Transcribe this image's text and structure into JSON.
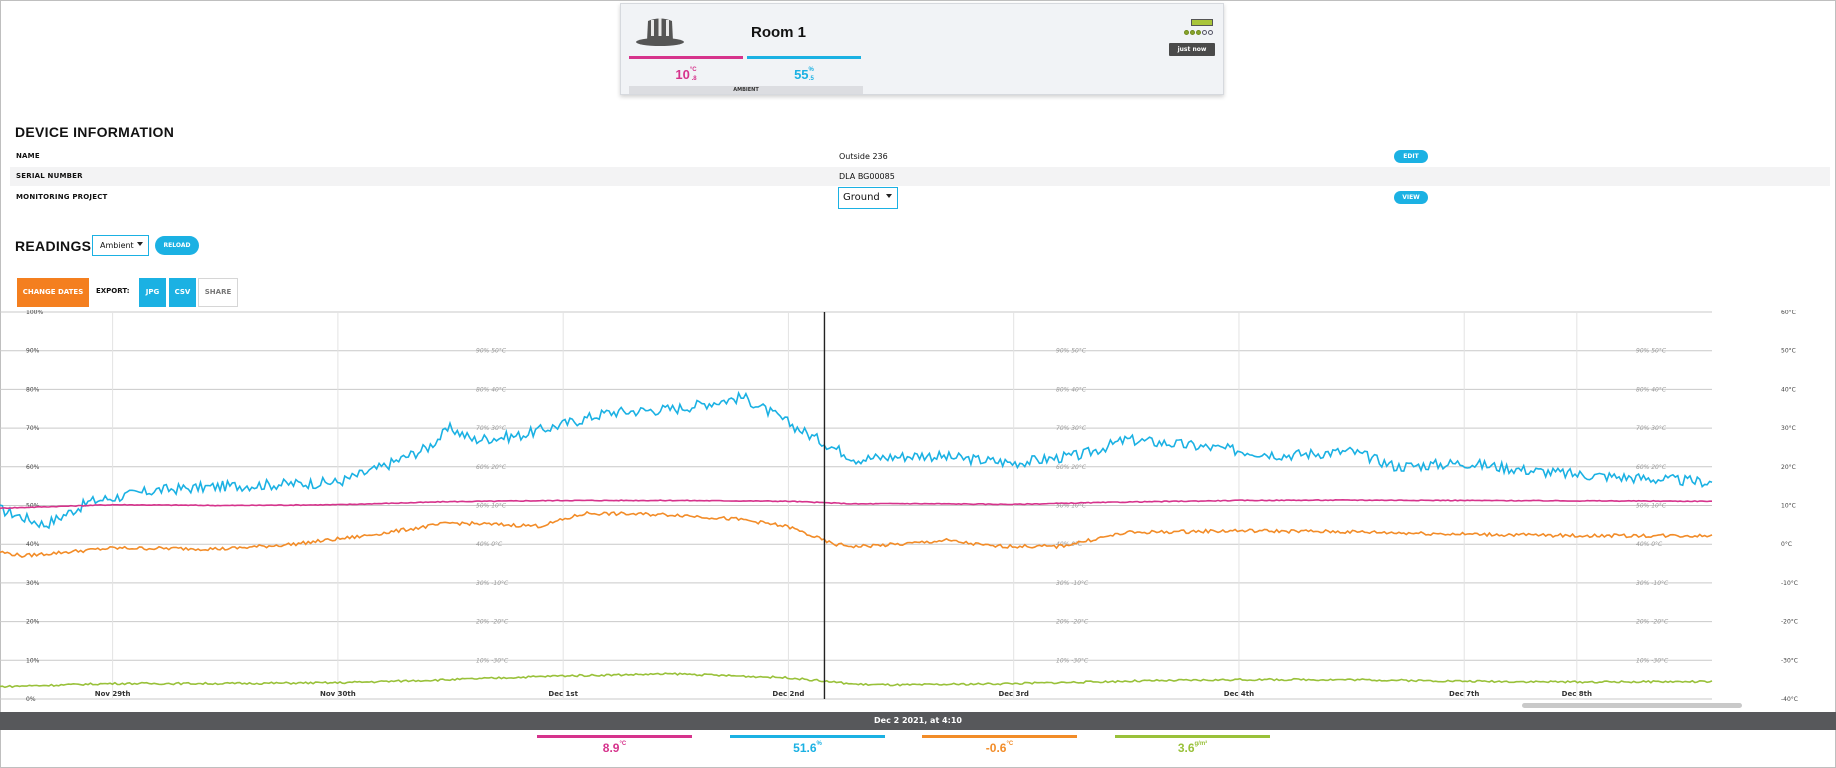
{
  "colors": {
    "temperature": "#d6338c",
    "humidity": "#1bb1e3",
    "dewpoint": "#f28c28",
    "vpd": "#99c13a",
    "accent": "#1bb1e3",
    "change_dates": "#f47f1f"
  },
  "device_card": {
    "icon": "hat-icon",
    "title": "Room 1",
    "battery_icon": "battery-icon",
    "signal_icon": "signal-dots-icon",
    "updated": "just now",
    "temperature": {
      "value": "10",
      "unit": "°C",
      "decimal": ".8"
    },
    "humidity": {
      "value": "55",
      "unit": "%",
      "decimal": ".5"
    },
    "sensor_label": "AMBIENT"
  },
  "device_info": {
    "heading": "DEVICE INFORMATION",
    "rows": [
      {
        "label": "NAME",
        "value": "Outside 236",
        "action": "EDIT"
      },
      {
        "label": "SERIAL NUMBER",
        "value": "DLA BG00085"
      },
      {
        "label": "MONITORING PROJECT",
        "value": "Ground",
        "action": "VIEW"
      }
    ]
  },
  "readings": {
    "heading": "READINGS",
    "sensor_select": "Ambient",
    "reload": "RELOAD",
    "change_dates": "CHANGE DATES",
    "export_label": "EXPORT:",
    "jpg": "JPG",
    "csv": "CSV",
    "share": "SHARE"
  },
  "chart_data": {
    "type": "line",
    "left_axis": {
      "ticks": [
        "100%",
        "90%",
        "80%",
        "70%",
        "60%",
        "50%",
        "40%",
        "30%",
        "20%",
        "10%",
        "0%"
      ],
      "ylim": [
        0,
        100
      ],
      "unit": "%"
    },
    "right_axis": {
      "ticks": [
        "60°C",
        "50°C",
        "40°C",
        "30°C",
        "20°C",
        "10°C",
        "0°C",
        "-10°C",
        "-20°C",
        "-30°C",
        "-40°C"
      ],
      "ylim": [
        -40,
        60
      ],
      "unit": "°C"
    },
    "gridline_labels": [
      "90% 50°C",
      "80% 40°C",
      "70% 30°C",
      "60% 20°C",
      "50% 10°C",
      "40% 0°C",
      "30% -10°C",
      "20% -20°C",
      "10% -30°C"
    ],
    "x_labels": [
      "Nov 29th",
      "Nov 30th",
      "Dec 1st",
      "Dec 2nd",
      "Dec 3rd",
      "Dec 4th",
      "Dec 7th",
      "Dec 8th"
    ],
    "x_label_positions": [
      0.5,
      1.5,
      2.5,
      3.5,
      4.5,
      5.5,
      6.5,
      7.0
    ],
    "x_range": [
      0,
      7.6
    ],
    "cursor_x": 3.66,
    "series": [
      {
        "key": "humidity",
        "axis": "left",
        "x": [
          0,
          0.2,
          0.4,
          0.7,
          1.0,
          1.5,
          1.7,
          1.9,
          2.0,
          2.1,
          2.3,
          2.7,
          3.0,
          3.3,
          3.6,
          3.8,
          4.1,
          4.5,
          4.8,
          5.0,
          5.2,
          5.7,
          6.0,
          6.2,
          6.5,
          6.8,
          7.0,
          7.3,
          7.6
        ],
        "y": [
          49,
          45,
          51,
          54,
          55,
          56,
          60,
          65,
          70,
          67,
          68,
          74,
          75,
          78,
          68,
          62,
          63,
          61,
          63,
          67,
          66,
          63,
          64,
          60,
          61,
          59,
          58,
          57,
          56
        ],
        "noise": 1.4
      },
      {
        "key": "temperature",
        "axis": "right",
        "x": [
          0,
          0.5,
          1.0,
          1.5,
          2.0,
          2.5,
          3.0,
          3.5,
          3.8,
          4.0,
          4.5,
          5.0,
          5.5,
          6.0,
          6.5,
          7.0,
          7.6
        ],
        "y": [
          9.3,
          10.2,
          10.0,
          10.2,
          11.0,
          11.3,
          11.3,
          11.1,
          10.4,
          10.5,
          10.3,
          10.9,
          11.3,
          11.4,
          11.3,
          11.2,
          11.1
        ],
        "noise": 0.1
      },
      {
        "key": "dewpoint",
        "axis": "right",
        "x": [
          0,
          0.1,
          0.5,
          1.0,
          1.3,
          1.6,
          2.0,
          2.4,
          2.6,
          3.0,
          3.3,
          3.5,
          3.7,
          3.8,
          4.0,
          4.2,
          4.4,
          4.7,
          5.0,
          5.5,
          6.0,
          6.5,
          7.0,
          7.6
        ],
        "y": [
          -2.0,
          -3.0,
          -1.0,
          -1.2,
          0.0,
          2.0,
          5.5,
          4.7,
          8.0,
          7.6,
          6.3,
          4.5,
          0.0,
          -0.6,
          0.0,
          1.0,
          -0.5,
          -0.6,
          3.0,
          3.5,
          3.2,
          2.6,
          2.2,
          2.2
        ],
        "noise": 0.45
      },
      {
        "key": "vpd",
        "axis": "left",
        "x": [
          0,
          0.5,
          1.0,
          1.5,
          2.0,
          2.5,
          3.0,
          3.5,
          3.8,
          4.0,
          4.5,
          5.0,
          5.5,
          6.0,
          6.5,
          7.0,
          7.6
        ],
        "y": [
          3.2,
          4.0,
          4.0,
          4.2,
          5.0,
          6.0,
          6.5,
          5.5,
          3.8,
          3.6,
          4.0,
          4.6,
          5.0,
          5.0,
          4.6,
          4.4,
          4.5
        ],
        "noise": 0.25
      }
    ]
  },
  "tooltip": {
    "time": "Dec 2 2021, at 4:10",
    "values": [
      {
        "key": "temperature",
        "value": "8.9",
        "unit": "°C"
      },
      {
        "key": "humidity",
        "value": "51.6",
        "unit": "%"
      },
      {
        "key": "dewpoint",
        "value": "-0.6",
        "unit": "°C"
      },
      {
        "key": "vpd",
        "value": "3.6",
        "unit": "g/m³"
      }
    ]
  }
}
